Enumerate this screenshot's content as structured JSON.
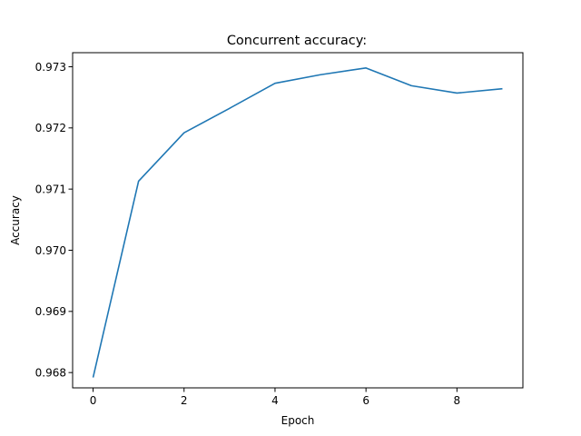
{
  "chart_data": {
    "type": "line",
    "title": "Concurrent accuracy:",
    "xlabel": "Epoch",
    "ylabel": "Accuracy",
    "xlim": [
      -0.45,
      9.45
    ],
    "ylim": [
      0.96775,
      0.97323
    ],
    "xticks": [
      0,
      2,
      4,
      6,
      8
    ],
    "xtick_labels": [
      "0",
      "2",
      "4",
      "6",
      "8"
    ],
    "yticks": [
      0.968,
      0.969,
      0.97,
      0.971,
      0.972,
      0.973
    ],
    "ytick_labels": [
      "0.968",
      "0.969",
      "0.970",
      "0.971",
      "0.972",
      "0.973"
    ],
    "grid": false,
    "series": [
      {
        "color": "#1f77b4",
        "x": [
          0,
          1,
          2,
          3,
          4,
          5,
          6,
          7,
          8,
          9
        ],
        "y": [
          0.96792,
          0.97113,
          0.97192,
          0.97232,
          0.97273,
          0.97287,
          0.97298,
          0.97269,
          0.97257,
          0.97264
        ]
      }
    ]
  }
}
